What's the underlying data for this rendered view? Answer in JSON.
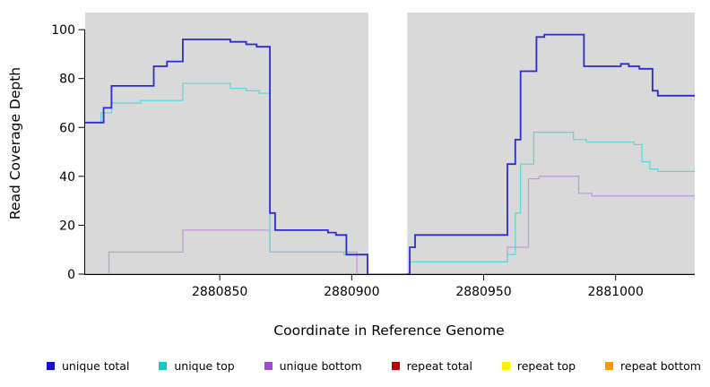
{
  "chart_data": {
    "type": "line",
    "title": "",
    "xlabel": "Coordinate in Reference Genome",
    "ylabel": "Read Coverage Depth",
    "xlim": [
      2880799,
      2881030
    ],
    "ylim": [
      0,
      107
    ],
    "x_ticks": [
      2880850,
      2880900,
      2880950,
      2881000
    ],
    "y_ticks": [
      0,
      20,
      40,
      60,
      80,
      100
    ],
    "plot_bg": "#d9d9d9",
    "grid": false,
    "step": "after",
    "gap_region": {
      "x_start": 2880906,
      "x_end": 2880921
    },
    "series": [
      {
        "name": "repeat total",
        "color": "#cc0000",
        "width": 1.3,
        "points": [
          [
            2880799,
            0
          ],
          [
            2881030,
            0
          ]
        ]
      },
      {
        "name": "repeat top",
        "color": "#fff200",
        "width": 1.3,
        "points": [
          [
            2880799,
            0
          ],
          [
            2881030,
            0
          ]
        ]
      },
      {
        "name": "repeat bottom",
        "color": "#ff9100",
        "width": 1.4,
        "points": [
          [
            2880799,
            0
          ],
          [
            2881030,
            0
          ]
        ]
      },
      {
        "name": "unique bottom",
        "color": "#c09bdb",
        "width": 1.3,
        "points": [
          [
            2880799,
            0
          ],
          [
            2880808,
            9
          ],
          [
            2880836,
            18
          ],
          [
            2880869,
            9
          ],
          [
            2880902,
            0
          ],
          [
            2880921,
            0
          ],
          [
            2880922,
            5
          ],
          [
            2880959,
            11
          ],
          [
            2880967,
            39
          ],
          [
            2880971,
            40
          ],
          [
            2880986,
            33
          ],
          [
            2880991,
            32
          ],
          [
            2881030,
            32
          ]
        ]
      },
      {
        "name": "unique top",
        "color": "#5fd7d7",
        "width": 1.3,
        "points": [
          [
            2880799,
            62
          ],
          [
            2880805,
            66
          ],
          [
            2880809,
            70
          ],
          [
            2880820,
            71
          ],
          [
            2880836,
            78
          ],
          [
            2880854,
            76
          ],
          [
            2880860,
            75
          ],
          [
            2880865,
            74
          ],
          [
            2880869,
            9
          ],
          [
            2880897,
            8
          ],
          [
            2880906,
            0
          ],
          [
            2880921,
            0
          ],
          [
            2880922,
            5
          ],
          [
            2880959,
            8
          ],
          [
            2880962,
            25
          ],
          [
            2880964,
            45
          ],
          [
            2880969,
            58
          ],
          [
            2880984,
            55
          ],
          [
            2880989,
            54
          ],
          [
            2881007,
            53
          ],
          [
            2881010,
            46
          ],
          [
            2881013,
            43
          ],
          [
            2881016,
            42
          ],
          [
            2881030,
            42
          ]
        ]
      },
      {
        "name": "unique total",
        "color": "#2b2bd0",
        "width": 1.8,
        "points": [
          [
            2880799,
            62
          ],
          [
            2880806,
            68
          ],
          [
            2880809,
            77
          ],
          [
            2880825,
            85
          ],
          [
            2880830,
            87
          ],
          [
            2880836,
            96
          ],
          [
            2880854,
            95
          ],
          [
            2880860,
            94
          ],
          [
            2880864,
            93
          ],
          [
            2880869,
            25
          ],
          [
            2880871,
            18
          ],
          [
            2880888,
            18
          ],
          [
            2880891,
            17
          ],
          [
            2880894,
            16
          ],
          [
            2880898,
            8
          ],
          [
            2880906,
            0
          ],
          [
            2880921,
            0
          ],
          [
            2880922,
            11
          ],
          [
            2880924,
            16
          ],
          [
            2880957,
            16
          ],
          [
            2880959,
            45
          ],
          [
            2880962,
            55
          ],
          [
            2880964,
            83
          ],
          [
            2880970,
            97
          ],
          [
            2880973,
            98
          ],
          [
            2880987,
            98
          ],
          [
            2880988,
            85
          ],
          [
            2881000,
            85
          ],
          [
            2881002,
            86
          ],
          [
            2881005,
            85
          ],
          [
            2881009,
            84
          ],
          [
            2881014,
            75
          ],
          [
            2881016,
            73
          ],
          [
            2881030,
            73
          ]
        ]
      }
    ],
    "legend": [
      {
        "label": "unique total",
        "color": "#1414cc"
      },
      {
        "label": "unique top",
        "color": "#16c8c8"
      },
      {
        "label": "unique bottom",
        "color": "#9b4fd0"
      },
      {
        "label": "repeat total",
        "color": "#c00000"
      },
      {
        "label": "repeat top",
        "color": "#fff200"
      },
      {
        "label": "repeat bottom",
        "color": "#ff9900"
      }
    ],
    "legend_position": "bottom"
  }
}
